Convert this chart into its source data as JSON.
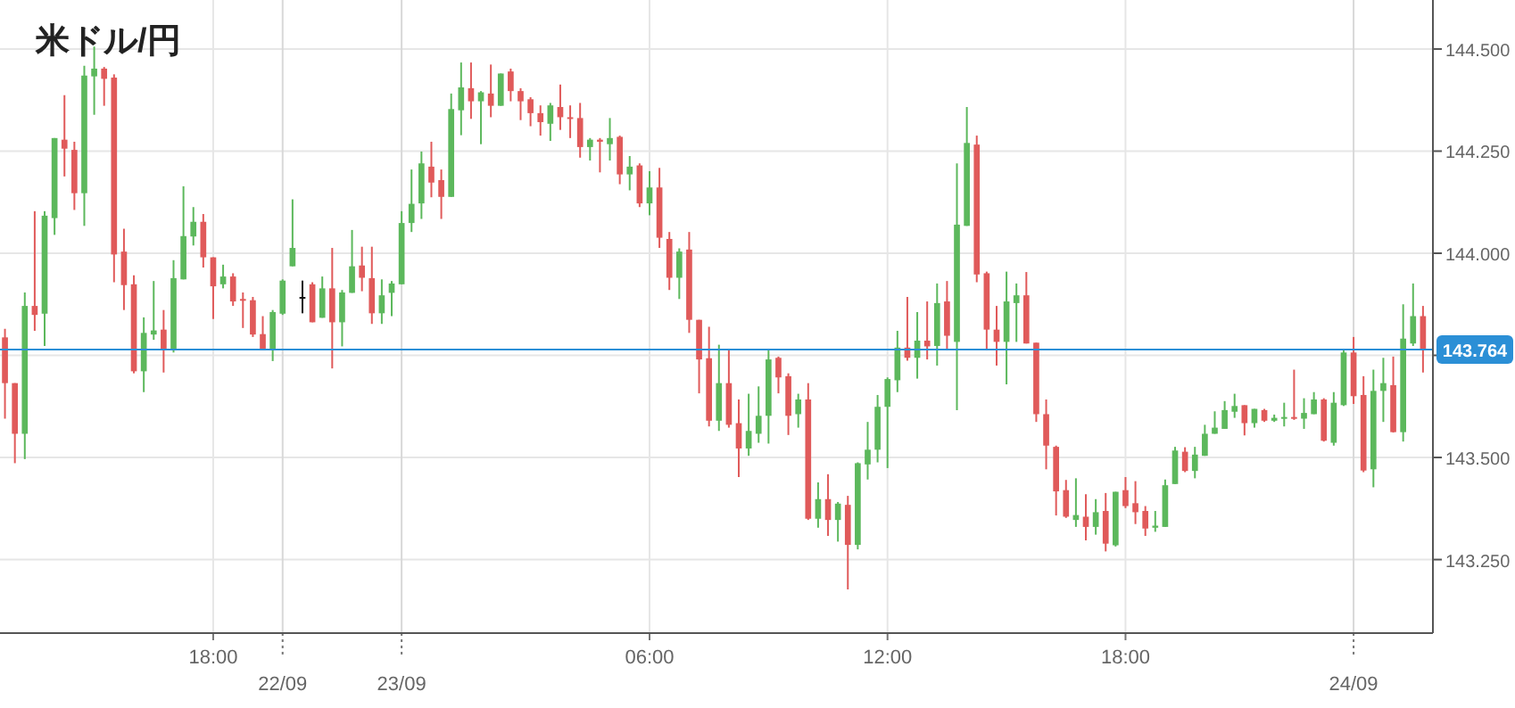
{
  "chart_data": {
    "type": "candlestick",
    "title": "米ドル/円",
    "categories": [
      null,
      null,
      null,
      null,
      null,
      null,
      null,
      null,
      null,
      null,
      null,
      null,
      null,
      null,
      null,
      null,
      null,
      null,
      null,
      null,
      null,
      "18:00",
      null,
      null,
      null,
      null,
      null,
      null,
      "22/09",
      null,
      null,
      null,
      null,
      null,
      null,
      null,
      null,
      null,
      null,
      null,
      "23/09",
      null,
      null,
      null,
      null,
      null,
      null,
      null,
      null,
      null,
      null,
      null,
      null,
      null,
      null,
      null,
      null,
      null,
      null,
      null,
      null,
      null,
      null,
      null,
      null,
      "06:00",
      null,
      null,
      null,
      null,
      null,
      null,
      null,
      null,
      null,
      null,
      null,
      null,
      null,
      null,
      null,
      null,
      null,
      null,
      null,
      null,
      null,
      null,
      null,
      "12:00",
      null,
      null,
      null,
      null,
      null,
      null,
      null,
      null,
      null,
      null,
      null,
      null,
      null,
      null,
      null,
      null,
      null,
      null,
      null,
      null,
      null,
      null,
      null,
      "18:00",
      null,
      null,
      null,
      null,
      null,
      null,
      null,
      null,
      null,
      null,
      null,
      null,
      null,
      null,
      null,
      null,
      null,
      null,
      null,
      null,
      null,
      null,
      "24/09",
      null,
      null,
      null,
      null,
      null,
      null,
      null
    ],
    "ohlc": [
      [
        143.794,
        143.815,
        143.595,
        143.682
      ],
      [
        143.682,
        143.682,
        143.486,
        143.558
      ],
      [
        143.558,
        143.904,
        143.496,
        143.871
      ],
      [
        143.871,
        144.103,
        143.81,
        143.849
      ],
      [
        143.852,
        144.103,
        143.773,
        144.092
      ],
      [
        144.086,
        144.282,
        144.045,
        144.282
      ],
      [
        144.278,
        144.387,
        144.188,
        144.256
      ],
      [
        144.253,
        144.273,
        144.106,
        144.147
      ],
      [
        144.147,
        144.459,
        144.067,
        144.435
      ],
      [
        144.433,
        144.506,
        144.339,
        144.452
      ],
      [
        144.452,
        144.456,
        144.361,
        144.427
      ],
      [
        144.43,
        144.438,
        143.929,
        143.997
      ],
      [
        144.004,
        144.06,
        143.861,
        143.922
      ],
      [
        143.924,
        143.946,
        143.706,
        143.711
      ],
      [
        143.711,
        143.843,
        143.66,
        143.805
      ],
      [
        143.801,
        143.932,
        143.788,
        143.811
      ],
      [
        143.813,
        143.861,
        143.708,
        143.766
      ],
      [
        143.766,
        143.983,
        143.757,
        143.939
      ],
      [
        143.936,
        144.164,
        143.936,
        144.042
      ],
      [
        144.041,
        144.113,
        144.019,
        144.077
      ],
      [
        144.077,
        144.096,
        143.965,
        143.99
      ],
      [
        143.99,
        143.99,
        143.839,
        143.919
      ],
      [
        143.924,
        143.972,
        143.914,
        143.943
      ],
      [
        143.943,
        143.951,
        143.871,
        143.882
      ],
      [
        143.888,
        143.904,
        143.817,
        143.884
      ],
      [
        143.885,
        143.893,
        143.795,
        143.801
      ],
      [
        143.802,
        143.846,
        143.765,
        143.765
      ],
      [
        143.765,
        143.861,
        143.736,
        143.856
      ],
      [
        143.852,
        143.936,
        143.849,
        143.933
      ],
      [
        143.968,
        144.132,
        143.968,
        144.013
      ],
      [
        143.893,
        143.933,
        143.853,
        143.89
      ],
      [
        143.924,
        143.929,
        143.831,
        143.831
      ],
      [
        143.842,
        143.943,
        143.842,
        143.914
      ],
      [
        143.914,
        144.013,
        143.718,
        143.831
      ],
      [
        143.831,
        143.91,
        143.772,
        143.904
      ],
      [
        143.903,
        144.057,
        143.903,
        143.968
      ],
      [
        143.97,
        144.016,
        143.907,
        143.94
      ],
      [
        143.939,
        144.016,
        143.827,
        143.853
      ],
      [
        143.853,
        143.936,
        143.827,
        143.897
      ],
      [
        143.903,
        143.932,
        143.846,
        143.926
      ],
      [
        143.924,
        144.103,
        143.924,
        144.074
      ],
      [
        144.074,
        144.205,
        144.052,
        144.121
      ],
      [
        144.122,
        144.249,
        144.084,
        144.22
      ],
      [
        144.212,
        144.273,
        144.137,
        144.173
      ],
      [
        144.179,
        144.205,
        144.084,
        144.138
      ],
      [
        144.138,
        144.391,
        144.138,
        144.353
      ],
      [
        144.35,
        144.467,
        144.289,
        144.406
      ],
      [
        144.404,
        144.467,
        144.329,
        144.372
      ],
      [
        144.372,
        144.397,
        144.267,
        144.394
      ],
      [
        144.391,
        144.462,
        144.333,
        144.361
      ],
      [
        144.361,
        144.44,
        144.361,
        144.44
      ],
      [
        144.445,
        144.452,
        144.372,
        144.397
      ],
      [
        144.397,
        144.404,
        144.326,
        144.372
      ],
      [
        144.377,
        144.382,
        144.311,
        144.343
      ],
      [
        144.343,
        144.362,
        144.288,
        144.321
      ],
      [
        144.317,
        144.368,
        144.275,
        144.362
      ],
      [
        144.358,
        144.413,
        144.302,
        144.333
      ],
      [
        144.333,
        144.362,
        144.282,
        144.329
      ],
      [
        144.331,
        144.368,
        144.234,
        144.26
      ],
      [
        144.26,
        144.282,
        144.227,
        144.278
      ],
      [
        144.278,
        144.282,
        144.198,
        144.273
      ],
      [
        144.267,
        144.331,
        144.227,
        144.282
      ],
      [
        144.285,
        144.288,
        144.169,
        144.193
      ],
      [
        144.193,
        144.238,
        144.154,
        144.212
      ],
      [
        144.215,
        144.22,
        144.113,
        144.122
      ],
      [
        144.122,
        144.201,
        144.093,
        144.161
      ],
      [
        144.161,
        144.209,
        144.013,
        144.038
      ],
      [
        144.035,
        144.052,
        143.91,
        143.94
      ],
      [
        143.94,
        144.012,
        143.888,
        144.004
      ],
      [
        144.009,
        144.052,
        143.805,
        143.837
      ],
      [
        143.837,
        143.837,
        143.657,
        143.74
      ],
      [
        143.743,
        143.82,
        143.576,
        143.59
      ],
      [
        143.59,
        143.776,
        143.565,
        143.682
      ],
      [
        143.682,
        143.765,
        143.573,
        143.58
      ],
      [
        143.584,
        143.642,
        143.452,
        143.522
      ],
      [
        143.522,
        143.656,
        143.504,
        143.565
      ],
      [
        143.558,
        143.674,
        143.536,
        143.602
      ],
      [
        143.602,
        143.762,
        143.534,
        143.74
      ],
      [
        143.744,
        143.747,
        143.657,
        143.696
      ],
      [
        143.699,
        143.706,
        143.555,
        143.602
      ],
      [
        143.606,
        143.656,
        143.573,
        143.642
      ],
      [
        143.642,
        143.682,
        143.347,
        143.35
      ],
      [
        143.35,
        143.439,
        143.328,
        143.398
      ],
      [
        143.398,
        143.459,
        143.308,
        143.347
      ],
      [
        143.347,
        143.391,
        143.294,
        143.387
      ],
      [
        143.384,
        143.406,
        143.177,
        143.286
      ],
      [
        143.286,
        143.488,
        143.275,
        143.486
      ],
      [
        143.483,
        143.587,
        143.446,
        143.519
      ],
      [
        143.519,
        143.653,
        143.488,
        143.624
      ],
      [
        143.624,
        143.696,
        143.474,
        143.692
      ],
      [
        143.689,
        143.81,
        143.66,
        143.769
      ],
      [
        143.769,
        143.893,
        143.737,
        143.744
      ],
      [
        143.744,
        143.856,
        143.693,
        143.786
      ],
      [
        143.786,
        143.882,
        143.74,
        143.772
      ],
      [
        143.773,
        143.926,
        143.725,
        143.878
      ],
      [
        143.882,
        143.932,
        143.766,
        143.798
      ],
      [
        143.783,
        144.22,
        143.616,
        144.07
      ],
      [
        144.067,
        144.358,
        144.067,
        144.27
      ],
      [
        144.266,
        144.288,
        143.929,
        143.948
      ],
      [
        143.951,
        143.955,
        143.766,
        143.813
      ],
      [
        143.813,
        143.871,
        143.725,
        143.783
      ],
      [
        143.783,
        143.955,
        143.679,
        143.882
      ],
      [
        143.878,
        143.926,
        143.783,
        143.897
      ],
      [
        143.897,
        143.954,
        143.779,
        143.779
      ],
      [
        143.781,
        143.781,
        143.587,
        143.606
      ],
      [
        143.606,
        143.642,
        143.471,
        143.529
      ],
      [
        143.526,
        143.529,
        143.358,
        143.417
      ],
      [
        143.42,
        143.445,
        143.352,
        143.355
      ],
      [
        143.347,
        143.449,
        143.33,
        143.359
      ],
      [
        143.355,
        143.41,
        143.297,
        143.33
      ],
      [
        143.33,
        143.398,
        143.311,
        143.366
      ],
      [
        143.369,
        143.413,
        143.27,
        143.289
      ],
      [
        143.285,
        143.416,
        143.282,
        143.416
      ],
      [
        143.42,
        143.452,
        143.376,
        143.381
      ],
      [
        143.388,
        143.442,
        143.337,
        143.366
      ],
      [
        143.369,
        143.381,
        143.308,
        143.326
      ],
      [
        143.328,
        143.369,
        143.318,
        143.333
      ],
      [
        143.33,
        143.446,
        143.33,
        143.432
      ],
      [
        143.435,
        143.526,
        143.435,
        143.517
      ],
      [
        143.514,
        143.525,
        143.464,
        143.467
      ],
      [
        143.467,
        143.526,
        143.449,
        143.507
      ],
      [
        143.504,
        143.58,
        143.504,
        143.558
      ],
      [
        143.558,
        143.613,
        143.558,
        143.573
      ],
      [
        143.57,
        143.638,
        143.57,
        143.616
      ],
      [
        143.612,
        143.656,
        143.597,
        143.626
      ],
      [
        143.628,
        143.628,
        143.554,
        143.584
      ],
      [
        143.584,
        143.619,
        143.573,
        143.619
      ],
      [
        143.616,
        143.619,
        143.587,
        143.59
      ],
      [
        143.59,
        143.605,
        143.587,
        143.597
      ],
      [
        143.595,
        143.634,
        143.576,
        143.599
      ],
      [
        143.599,
        143.715,
        143.592,
        143.595
      ],
      [
        143.595,
        143.645,
        143.57,
        143.609
      ],
      [
        143.606,
        143.66,
        143.606,
        143.642
      ],
      [
        143.642,
        143.645,
        143.539,
        143.541
      ],
      [
        143.536,
        143.66,
        143.529,
        143.634
      ],
      [
        143.628,
        143.762,
        143.626,
        143.757
      ],
      [
        143.757,
        143.795,
        143.631,
        143.65
      ],
      [
        143.653,
        143.699,
        143.464,
        143.468
      ],
      [
        143.471,
        143.715,
        143.427,
        143.663
      ],
      [
        143.663,
        143.744,
        143.587,
        143.682
      ],
      [
        143.677,
        143.747,
        143.561,
        143.562
      ],
      [
        143.562,
        143.875,
        143.539,
        143.791
      ],
      [
        143.779,
        143.926,
        143.773,
        143.846
      ],
      [
        143.846,
        143.871,
        143.708,
        143.764
      ]
    ],
    "colors": [
      "#e05a5a",
      "#e05a5a",
      "#5cb85c",
      "#e05a5a",
      "#5cb85c",
      "#5cb85c",
      "#e05a5a",
      "#e05a5a",
      "#5cb85c",
      "#5cb85c",
      "#e05a5a",
      "#e05a5a",
      "#e05a5a",
      "#e05a5a",
      "#5cb85c",
      "#5cb85c",
      "#e05a5a",
      "#5cb85c",
      "#5cb85c",
      "#5cb85c",
      "#e05a5a",
      "#e05a5a",
      "#5cb85c",
      "#e05a5a",
      "#e05a5a",
      "#e05a5a",
      "#e05a5a",
      "#5cb85c",
      "#5cb85c",
      "#5cb85c",
      "#111111",
      "#e05a5a",
      "#5cb85c",
      "#e05a5a",
      "#5cb85c",
      "#5cb85c",
      "#e05a5a",
      "#e05a5a",
      "#5cb85c",
      "#5cb85c",
      "#5cb85c",
      "#5cb85c",
      "#5cb85c",
      "#e05a5a",
      "#e05a5a",
      "#5cb85c",
      "#5cb85c",
      "#e05a5a",
      "#5cb85c",
      "#e05a5a",
      "#5cb85c",
      "#e05a5a",
      "#e05a5a",
      "#e05a5a",
      "#e05a5a",
      "#5cb85c",
      "#e05a5a",
      "#e05a5a",
      "#e05a5a",
      "#5cb85c",
      "#e05a5a",
      "#5cb85c",
      "#e05a5a",
      "#5cb85c",
      "#e05a5a",
      "#5cb85c",
      "#e05a5a",
      "#e05a5a",
      "#5cb85c",
      "#e05a5a",
      "#e05a5a",
      "#e05a5a",
      "#5cb85c",
      "#e05a5a",
      "#e05a5a",
      "#5cb85c",
      "#5cb85c",
      "#5cb85c",
      "#e05a5a",
      "#e05a5a",
      "#5cb85c",
      "#e05a5a",
      "#5cb85c",
      "#e05a5a",
      "#5cb85c",
      "#e05a5a",
      "#5cb85c",
      "#5cb85c",
      "#5cb85c",
      "#5cb85c",
      "#5cb85c",
      "#e05a5a",
      "#5cb85c",
      "#e05a5a",
      "#5cb85c",
      "#e05a5a",
      "#5cb85c",
      "#5cb85c",
      "#e05a5a",
      "#e05a5a",
      "#e05a5a",
      "#5cb85c",
      "#5cb85c",
      "#e05a5a",
      "#e05a5a",
      "#e05a5a",
      "#e05a5a",
      "#e05a5a",
      "#5cb85c",
      "#e05a5a",
      "#5cb85c",
      "#e05a5a",
      "#5cb85c",
      "#e05a5a",
      "#e05a5a",
      "#e05a5a",
      "#5cb85c",
      "#5cb85c",
      "#5cb85c",
      "#e05a5a",
      "#5cb85c",
      "#5cb85c",
      "#5cb85c",
      "#5cb85c",
      "#5cb85c",
      "#e05a5a",
      "#5cb85c",
      "#e05a5a",
      "#5cb85c",
      "#5cb85c",
      "#e05a5a",
      "#5cb85c",
      "#5cb85c",
      "#e05a5a",
      "#5cb85c",
      "#5cb85c",
      "#e05a5a",
      "#e05a5a",
      "#5cb85c",
      "#5cb85c",
      "#e05a5a",
      "#5cb85c",
      "#5cb85c",
      "#e05a5a"
    ],
    "ylim": [
      143.07,
      144.62
    ],
    "yticks": [
      {
        "value": 143.25,
        "label": "143.250"
      },
      {
        "value": 143.5,
        "label": "143.500"
      },
      {
        "value": 143.75,
        "label": null
      },
      {
        "value": 144.0,
        "label": "144.000"
      },
      {
        "value": 144.25,
        "label": "144.250"
      },
      {
        "value": 144.5,
        "label": "144.500"
      }
    ],
    "ref_lines": [
      {
        "axis": "y",
        "value": 143.764,
        "label": "143.764",
        "color": "#2b8fd6"
      }
    ],
    "grid": true
  }
}
